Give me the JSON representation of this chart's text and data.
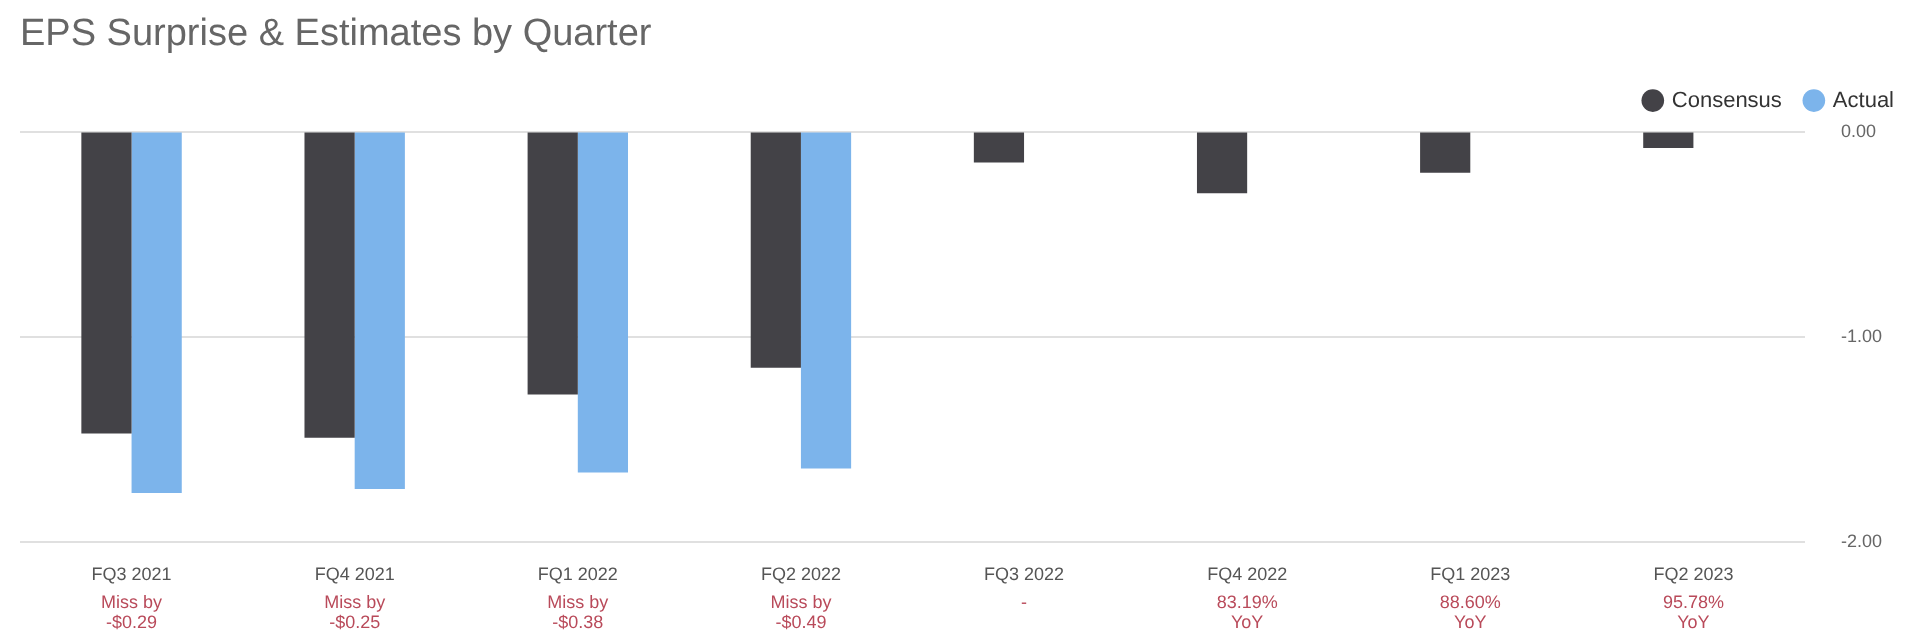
{
  "chart_data": {
    "type": "bar",
    "title": "EPS Surprise & Estimates by Quarter",
    "categories": [
      "FQ3 2021",
      "FQ4 2021",
      "FQ1 2022",
      "FQ2 2022",
      "FQ3 2022",
      "FQ4 2022",
      "FQ1 2023",
      "FQ2 2023"
    ],
    "series": [
      {
        "name": "Consensus",
        "color": "#434247",
        "values": [
          -1.47,
          -1.49,
          -1.28,
          -1.15,
          -0.15,
          -0.3,
          -0.2,
          -0.08
        ]
      },
      {
        "name": "Actual",
        "color": "#7cb4eb",
        "values": [
          -1.76,
          -1.74,
          -1.66,
          -1.64,
          null,
          null,
          null,
          null
        ]
      }
    ],
    "ylim": [
      -2,
      0
    ],
    "yticks": [
      {
        "value": 0,
        "label": "0.00"
      },
      {
        "value": -1,
        "label": "-1.00"
      },
      {
        "value": -2,
        "label": "-2.00"
      }
    ],
    "grid": "y",
    "legend": "top right",
    "annotations": [
      "Miss by\n-$0.29",
      "Miss by\n-$0.25",
      "Miss by\n-$0.38",
      "Miss by\n-$0.49",
      "-",
      "83.19%\nYoY",
      "88.60%\nYoY",
      "95.78%\nYoY"
    ]
  }
}
